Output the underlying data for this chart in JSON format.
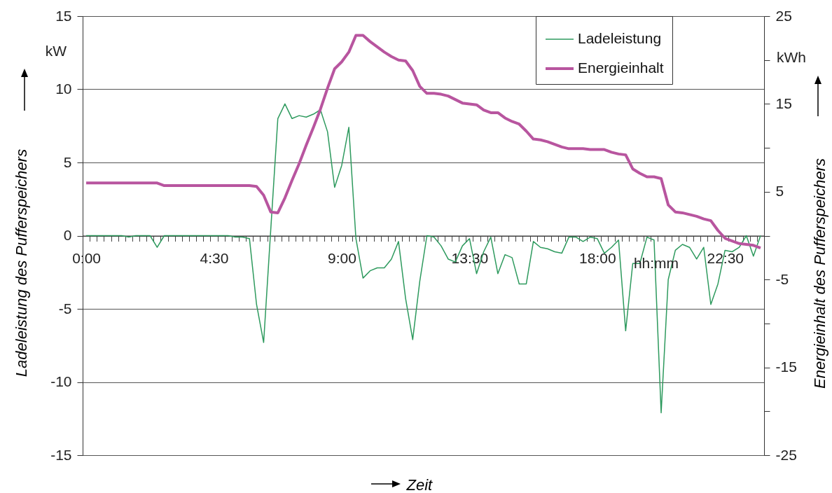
{
  "chart_data": {
    "type": "line",
    "xlabel": "Zeit",
    "ylabel": "Ladeleistung des Pufferspeichers",
    "y2label": "Energieinhalt des Pufferspeichers",
    "annotations": [
      "kW",
      "kWh",
      "hh:mm"
    ],
    "categories": [
      "0:00",
      null,
      null,
      null,
      null,
      null,
      null,
      null,
      null,
      null,
      null,
      null,
      null,
      null,
      null,
      null,
      null,
      null,
      "4:30",
      null,
      null,
      null,
      null,
      null,
      null,
      null,
      null,
      null,
      null,
      null,
      null,
      null,
      null,
      null,
      null,
      null,
      "9:00",
      null,
      null,
      null,
      null,
      null,
      null,
      null,
      null,
      null,
      null,
      null,
      null,
      null,
      null,
      null,
      null,
      null,
      "13:30",
      null,
      null,
      null,
      null,
      null,
      null,
      null,
      null,
      null,
      null,
      null,
      null,
      null,
      null,
      null,
      null,
      null,
      "18:00",
      null,
      null,
      null,
      null,
      null,
      null,
      null,
      null,
      null,
      null,
      null,
      null,
      null,
      null,
      null,
      null,
      null,
      "22:30",
      null,
      null,
      null,
      null,
      null
    ],
    "series": [
      {
        "name": "Ladeleistung",
        "color": "#2e9a5e",
        "values": [
          0,
          0,
          0,
          0,
          0,
          0,
          -0.1,
          0,
          0,
          0,
          -0.8,
          0,
          0,
          0,
          0,
          0,
          0,
          0,
          0,
          0,
          0,
          -0.1,
          -0.1,
          -0.2,
          -4.7,
          -7.3,
          0.4,
          8.0,
          9.0,
          8.0,
          8.2,
          8.1,
          8.3,
          8.6,
          7.1,
          3.3,
          4.8,
          7.4,
          -0.2,
          -2.9,
          -2.4,
          -2.2,
          -2.2,
          -1.6,
          -0.4,
          -4.3,
          -7.1,
          -3.1,
          0,
          -0.1,
          -0.7,
          -1.6,
          -1.8,
          -0.7,
          -0.2,
          -2.6,
          -1.1,
          -0.1,
          -2.6,
          -1.3,
          -1.5,
          -3.3,
          -3.3,
          -0.4,
          -0.8,
          -0.9,
          -1.1,
          -1.2,
          -0.1,
          -0.1,
          -0.4,
          -0.1,
          -0.2,
          -1.2,
          -0.8,
          -0.3,
          -6.5,
          -1.9,
          -1.9,
          -0.1,
          -0.3,
          -12.1,
          -3.0,
          -1.0,
          -0.6,
          -0.8,
          -1.6,
          -0.8,
          -4.7,
          -3.3,
          -1.0,
          -1.1,
          -0.8,
          0,
          -1.4,
          0
        ]
      },
      {
        "name": "Energieinhalt",
        "color": "#b8559f",
        "axis": "y2",
        "values": [
          6.0,
          6.0,
          6.0,
          6.0,
          6.0,
          6.0,
          6.0,
          6.0,
          6.0,
          6.0,
          6.0,
          5.7,
          5.7,
          5.7,
          5.7,
          5.7,
          5.7,
          5.7,
          5.7,
          5.7,
          5.7,
          5.7,
          5.7,
          5.7,
          5.6,
          4.6,
          2.7,
          2.6,
          4.3,
          6.3,
          8.2,
          10.3,
          12.3,
          14.4,
          16.8,
          19.0,
          19.8,
          20.9,
          22.8,
          22.8,
          22.1,
          21.5,
          20.9,
          20.4,
          20.0,
          19.9,
          18.8,
          17.0,
          16.2,
          16.2,
          16.1,
          15.9,
          15.5,
          15.1,
          15.0,
          14.9,
          14.3,
          14.0,
          14.0,
          13.4,
          13.0,
          12.7,
          11.9,
          11.0,
          10.9,
          10.7,
          10.4,
          10.1,
          9.9,
          9.9,
          9.9,
          9.8,
          9.8,
          9.8,
          9.5,
          9.3,
          9.2,
          7.6,
          7.1,
          6.7,
          6.7,
          6.5,
          3.5,
          2.7,
          2.6,
          2.4,
          2.2,
          1.9,
          1.7,
          0.6,
          -0.3,
          -0.6,
          -0.9,
          -1.0,
          -1.1,
          -1.4
        ]
      }
    ],
    "ylim": [
      -15,
      15
    ],
    "yticks": [
      -15,
      -10,
      -5,
      0,
      5,
      10,
      15
    ],
    "y2lim": [
      -25,
      25
    ],
    "y2ticks": [
      -25,
      {
        "value": -20,
        "label": null
      },
      -15,
      {
        "value": -10,
        "label": null
      },
      -5,
      {
        "value": 0,
        "label": null
      },
      5,
      {
        "value": 10,
        "label": null
      },
      15,
      {
        "value": 20,
        "label": null
      },
      25
    ],
    "grid": "y",
    "legend": "top right"
  }
}
